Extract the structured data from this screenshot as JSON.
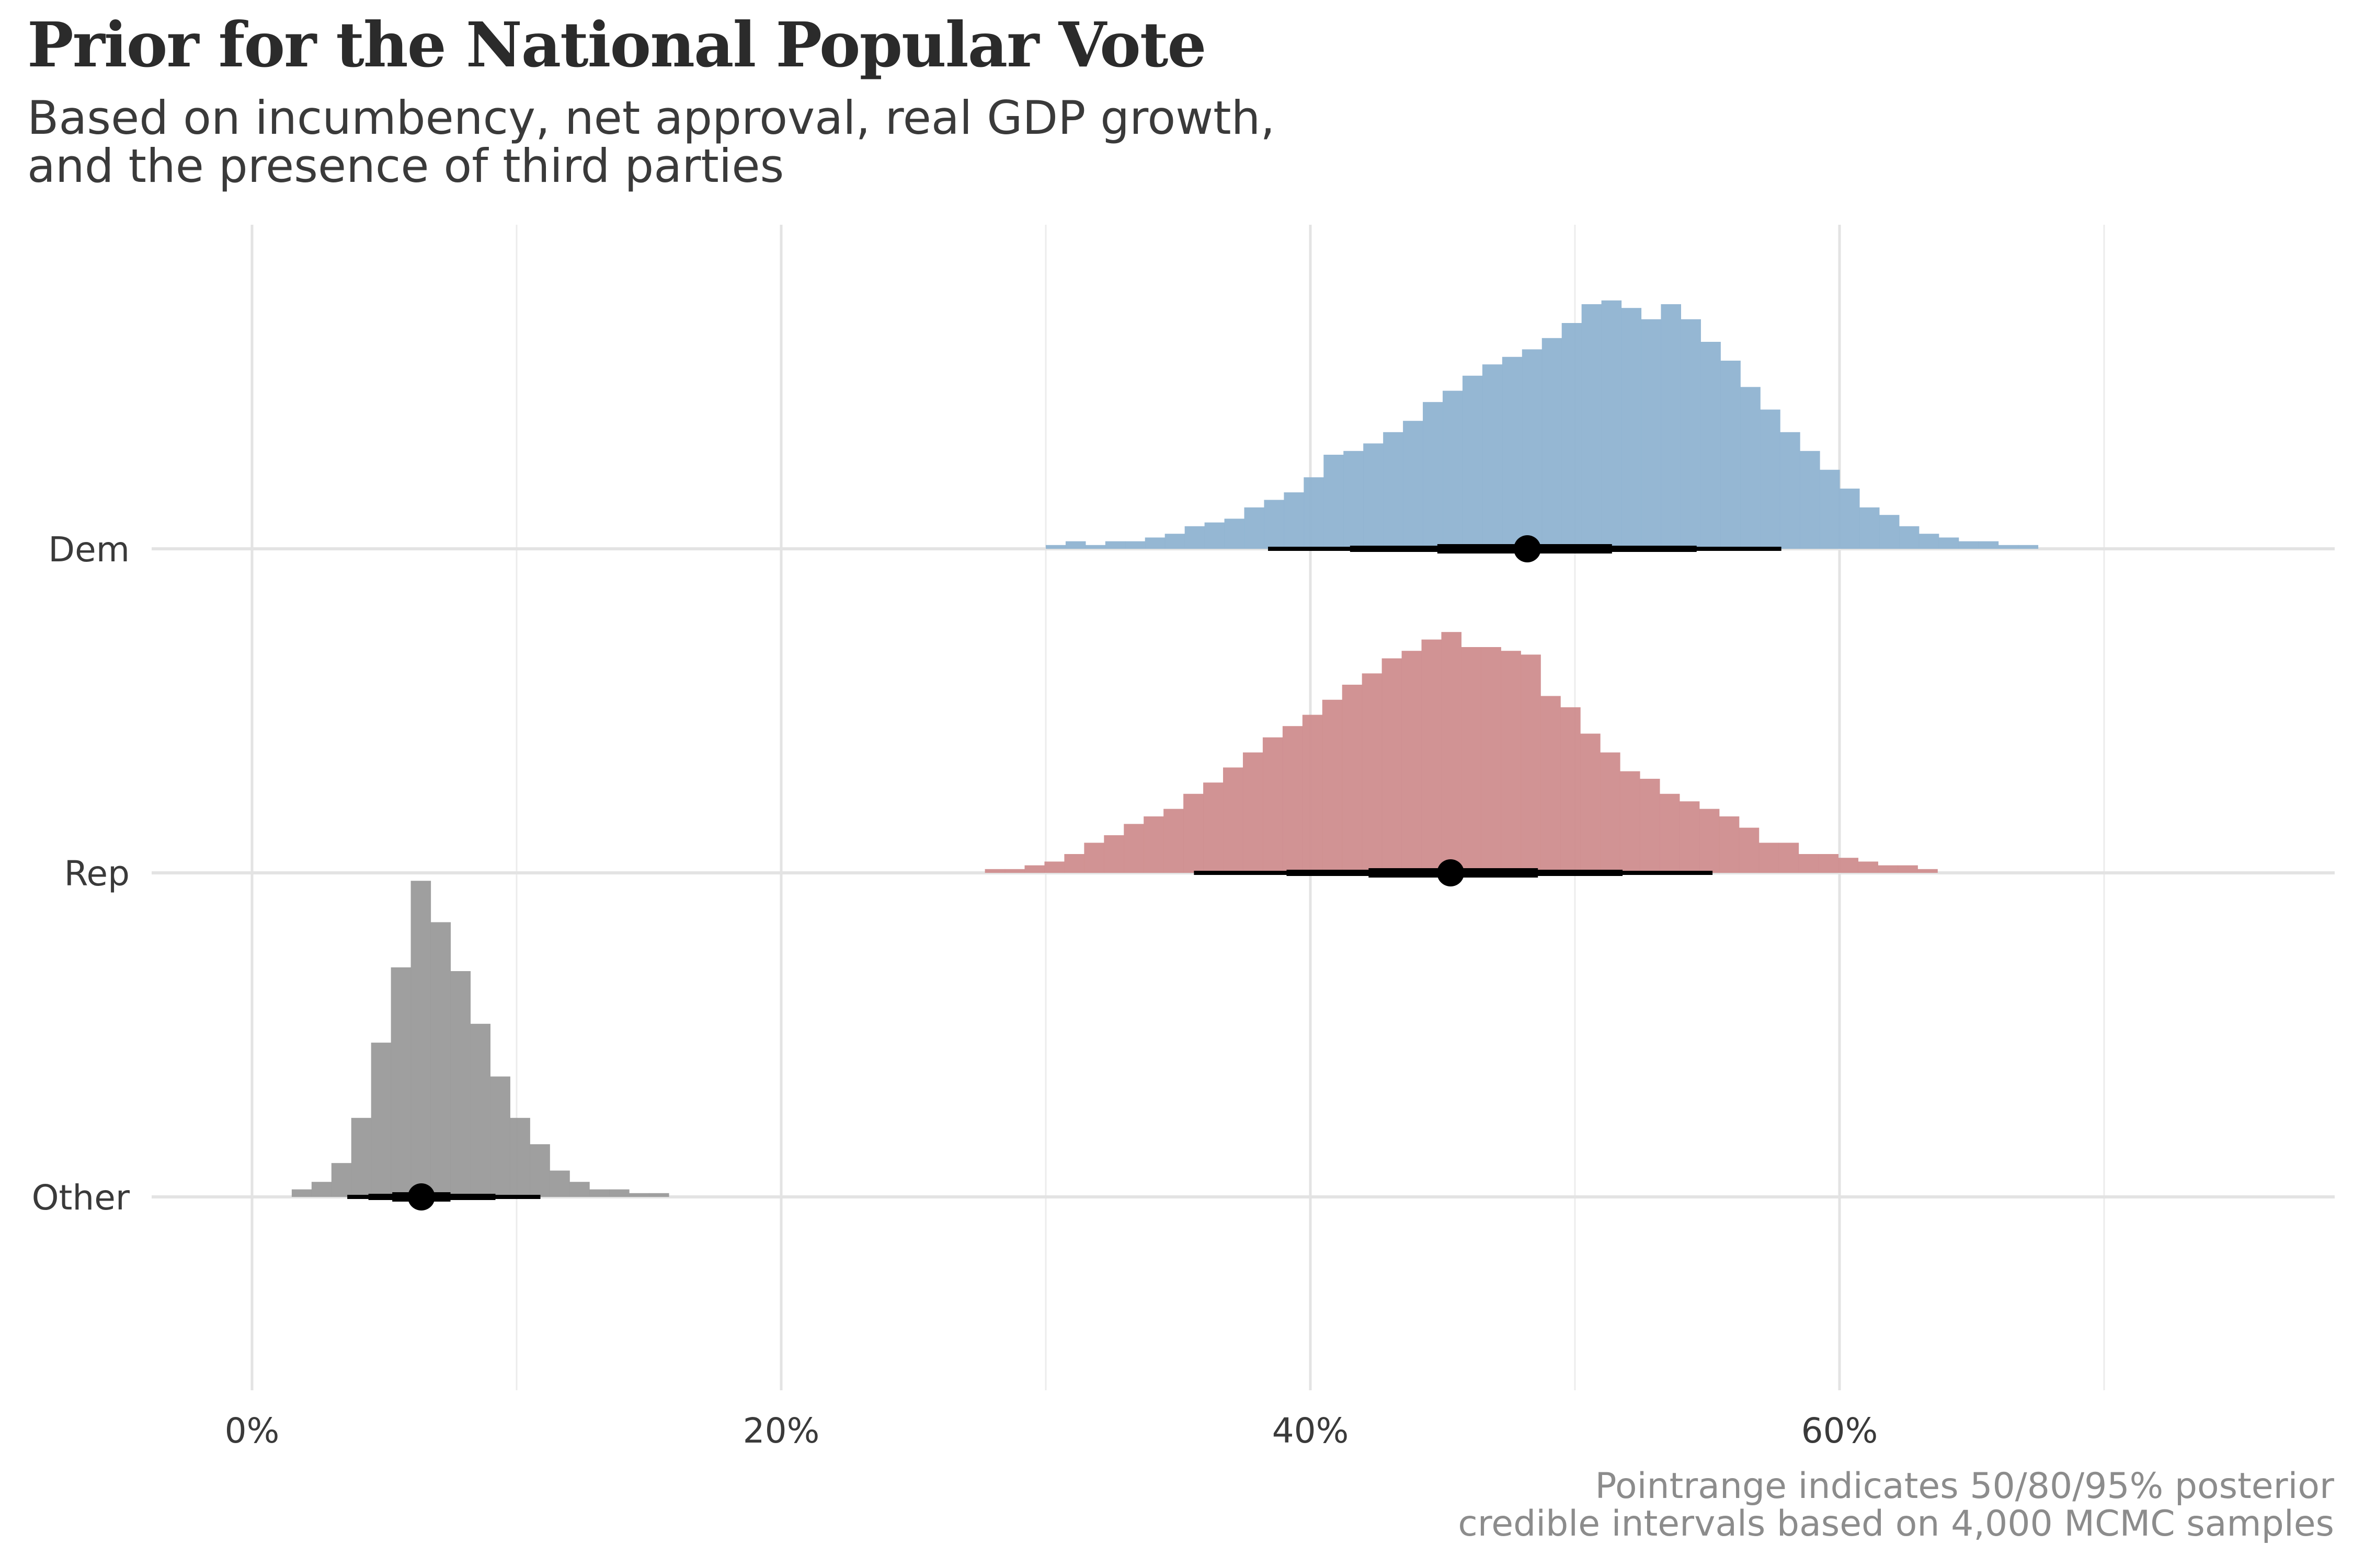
{
  "title": "Prior for the National Popular Vote",
  "subtitle": {
    "line1": "Based on incumbency, net approval, real GDP growth,",
    "line2": "and the presence of third parties"
  },
  "caption": {
    "line1": "Pointrange indicates 50/80/95% posterior",
    "line2": "credible intervals based on 4,000 MCMC samples"
  },
  "chart_data": {
    "type": "histogram",
    "title": "Prior for the National Popular Vote",
    "xlabel": "",
    "ylabel": "",
    "xlim": [
      -3.5,
      78
    ],
    "x_ticks": [
      0,
      20,
      40,
      60
    ],
    "x_tick_labels": [
      "0%",
      "20%",
      "40%",
      "60%"
    ],
    "x_minor_ticks": [
      10,
      30,
      50,
      70
    ],
    "categories": [
      "Dem",
      "Rep",
      "Other"
    ],
    "bin_width": 0.75,
    "series": [
      {
        "name": "Dem",
        "color": "#8fb3d1",
        "bin_start": 30.0,
        "density": [
          0.01,
          0.02,
          0.01,
          0.02,
          0.02,
          0.03,
          0.04,
          0.06,
          0.07,
          0.08,
          0.11,
          0.13,
          0.15,
          0.19,
          0.25,
          0.26,
          0.28,
          0.31,
          0.34,
          0.39,
          0.42,
          0.46,
          0.49,
          0.51,
          0.53,
          0.56,
          0.6,
          0.65,
          0.66,
          0.64,
          0.61,
          0.65,
          0.61,
          0.55,
          0.5,
          0.43,
          0.37,
          0.31,
          0.26,
          0.21,
          0.16,
          0.11,
          0.09,
          0.06,
          0.04,
          0.03,
          0.02,
          0.02,
          0.01,
          0.01
        ],
        "median": 48.2,
        "ci50": [
          44.8,
          51.4
        ],
        "ci80": [
          41.5,
          54.6
        ],
        "ci95": [
          38.4,
          57.8
        ]
      },
      {
        "name": "Rep",
        "color": "#cf8d8e",
        "bin_start": 27.7,
        "density": [
          0.01,
          0.01,
          0.02,
          0.03,
          0.05,
          0.08,
          0.1,
          0.13,
          0.15,
          0.17,
          0.21,
          0.24,
          0.28,
          0.32,
          0.36,
          0.39,
          0.42,
          0.46,
          0.5,
          0.53,
          0.57,
          0.59,
          0.62,
          0.64,
          0.6,
          0.6,
          0.59,
          0.58,
          0.47,
          0.44,
          0.37,
          0.32,
          0.27,
          0.25,
          0.21,
          0.19,
          0.17,
          0.15,
          0.12,
          0.08,
          0.08,
          0.05,
          0.05,
          0.04,
          0.03,
          0.02,
          0.02,
          0.01
        ],
        "median": 45.3,
        "ci50": [
          42.2,
          48.6
        ],
        "ci80": [
          39.1,
          51.8
        ],
        "ci95": [
          35.6,
          55.2
        ]
      },
      {
        "name": "Other",
        "color": "#9a9a9a",
        "bin_start": 1.5,
        "density": [
          0.02,
          0.04,
          0.09,
          0.21,
          0.41,
          0.61,
          0.84,
          0.73,
          0.6,
          0.46,
          0.32,
          0.21,
          0.14,
          0.07,
          0.04,
          0.02,
          0.02,
          0.01,
          0.01
        ],
        "median": 6.4,
        "ci50": [
          5.3,
          7.5
        ],
        "ci80": [
          4.4,
          9.2
        ],
        "ci95": [
          3.6,
          10.9
        ]
      }
    ]
  }
}
